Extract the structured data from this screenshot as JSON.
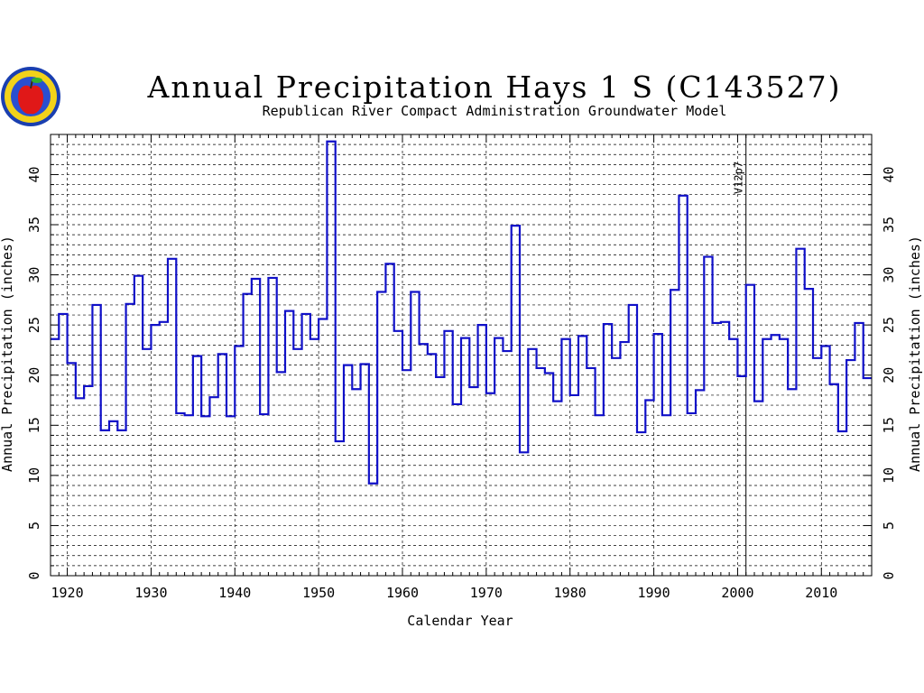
{
  "chart_data": {
    "type": "line",
    "step": true,
    "title": "Annual Precipitation Hays 1 S (C143527)",
    "subtitle": "Republican River Compact Administration Groundwater Model",
    "xlabel": "Calendar Year",
    "ylabel": "Annual Precipitation (inches)",
    "xlim": [
      1918,
      2016
    ],
    "ylim": [
      0,
      44
    ],
    "x_ticks": [
      1920,
      1930,
      1940,
      1950,
      1960,
      1970,
      1980,
      1990,
      2000,
      2010
    ],
    "y_ticks": [
      0,
      5,
      10,
      15,
      20,
      25,
      30,
      35,
      40
    ],
    "grid": true,
    "annotation": {
      "text": "V12p7",
      "x": 2001
    },
    "series": [
      {
        "color": "#1010c8",
        "x": [
          1918,
          1919,
          1920,
          1921,
          1922,
          1923,
          1924,
          1925,
          1926,
          1927,
          1928,
          1929,
          1930,
          1931,
          1932,
          1933,
          1934,
          1935,
          1936,
          1937,
          1938,
          1939,
          1940,
          1941,
          1942,
          1943,
          1944,
          1945,
          1946,
          1947,
          1948,
          1949,
          1950,
          1951,
          1952,
          1953,
          1954,
          1955,
          1956,
          1957,
          1958,
          1959,
          1960,
          1961,
          1962,
          1963,
          1964,
          1965,
          1966,
          1967,
          1968,
          1969,
          1970,
          1971,
          1972,
          1973,
          1974,
          1975,
          1976,
          1977,
          1978,
          1979,
          1980,
          1981,
          1982,
          1983,
          1984,
          1985,
          1986,
          1987,
          1988,
          1989,
          1990,
          1991,
          1992,
          1993,
          1994,
          1995,
          1996,
          1997,
          1998,
          1999,
          2000,
          2001,
          2002,
          2003,
          2004,
          2005,
          2006,
          2007,
          2008,
          2009,
          2010,
          2011,
          2012,
          2013,
          2014,
          2015
        ],
        "values": [
          23.6,
          26.1,
          21.2,
          17.7,
          18.9,
          27.0,
          14.5,
          15.4,
          14.5,
          27.1,
          29.9,
          22.6,
          25.0,
          25.3,
          31.6,
          16.2,
          16.0,
          21.9,
          15.9,
          17.8,
          22.1,
          15.9,
          22.9,
          28.1,
          29.6,
          16.1,
          29.7,
          20.3,
          26.4,
          22.6,
          26.1,
          23.6,
          25.6,
          43.3,
          13.4,
          21.0,
          18.6,
          21.1,
          9.2,
          28.3,
          31.1,
          24.4,
          20.5,
          28.3,
          23.1,
          22.1,
          19.8,
          24.4,
          17.1,
          23.7,
          18.8,
          25.0,
          18.2,
          23.7,
          22.4,
          34.9,
          12.3,
          22.6,
          20.7,
          20.2,
          17.4,
          23.6,
          18.0,
          23.9,
          20.7,
          16.0,
          25.1,
          21.7,
          23.3,
          27.0,
          14.3,
          17.5,
          24.1,
          16.0,
          28.5,
          37.9,
          16.2,
          18.5,
          31.8,
          25.2,
          25.3,
          23.6,
          19.9,
          29.0,
          17.4,
          23.6,
          24.0,
          23.6,
          18.6,
          32.6,
          28.6,
          21.7,
          22.9,
          19.1,
          14.4,
          21.5,
          25.2,
          19.7
        ]
      }
    ]
  }
}
